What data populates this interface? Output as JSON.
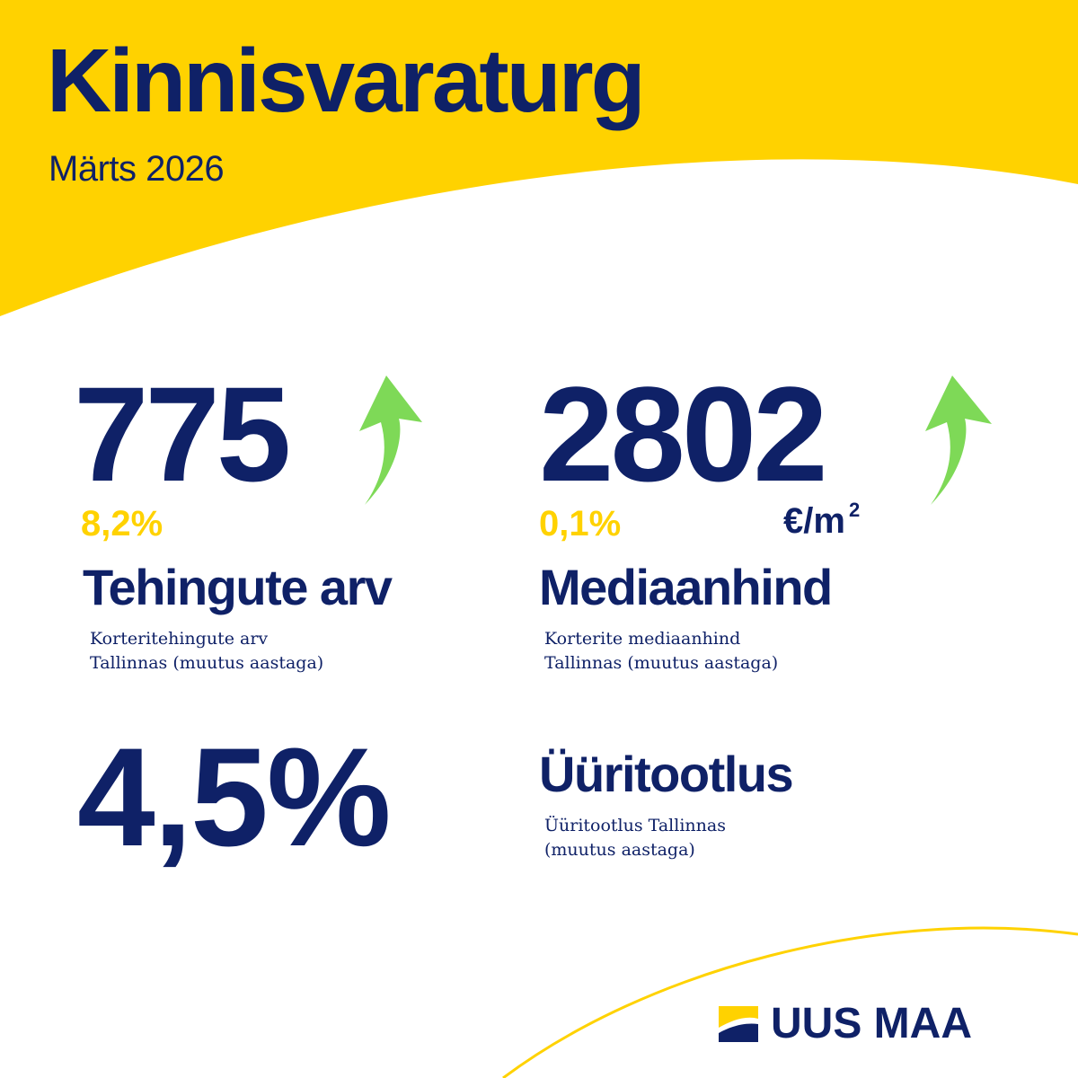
{
  "header": {
    "title": "Kinnisvaraturg",
    "subtitle": "Märts 2026"
  },
  "metrics": [
    {
      "value": "775",
      "change": "8,2%",
      "trend_icon": "arrow-up-icon",
      "label": "Tehingute arv",
      "description": [
        "Korteritehingute arv",
        "Tallinnas (muutus aastaga)"
      ]
    },
    {
      "value": "2802",
      "change": "0,1%",
      "unit": "€/m",
      "unit_superscript": "2",
      "trend_icon": "arrow-up-icon",
      "label": "Mediaanhind",
      "description": [
        "Korterite mediaanhind",
        "Tallinnas (muutus aastaga)"
      ]
    },
    {
      "value": "4,5%",
      "label": "Üüritootlus",
      "description": [
        "Üüritootlus Tallinnas",
        "(muutus aastaga)"
      ]
    }
  ],
  "brand": {
    "name": "UUS MAA",
    "logo_icon": "uus-maa-logo-icon"
  },
  "colors": {
    "primary": "#0f2167",
    "accent_yellow": "#ffd200",
    "arrow_green": "#7ed957",
    "background": "#ffffff"
  }
}
